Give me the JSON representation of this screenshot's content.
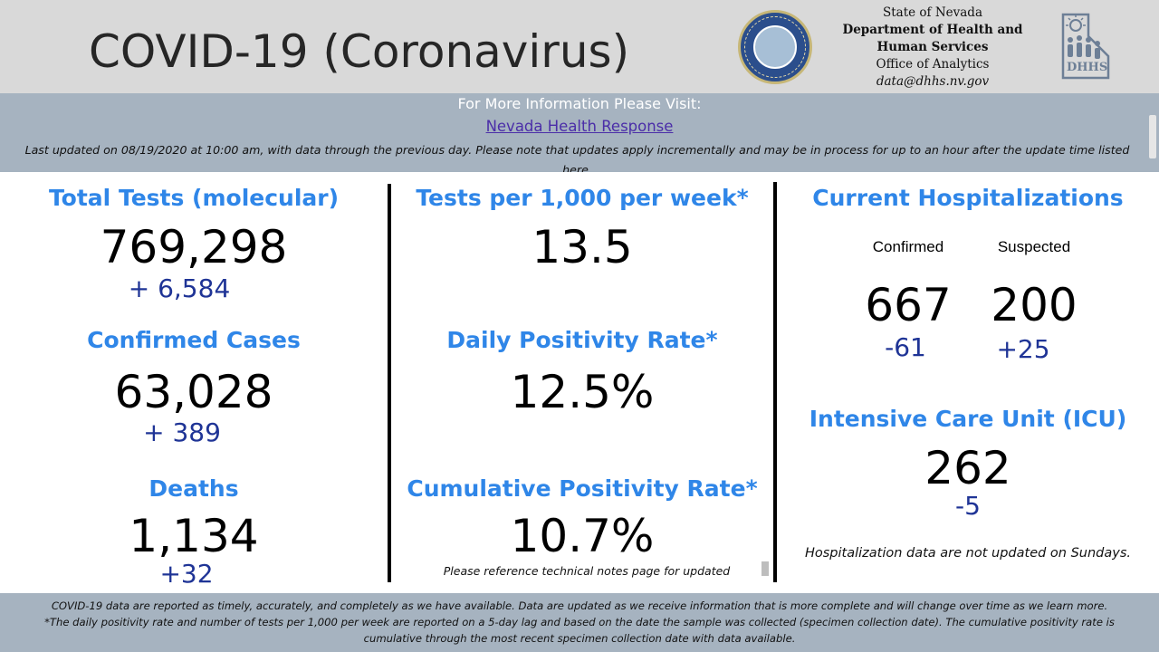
{
  "header": {
    "title": "COVID-19 (Coronavirus)",
    "dept_line1": "State of Nevada",
    "dept_line2": "Department of Health and",
    "dept_line3": "Human Services",
    "dept_line4": "Office of Analytics",
    "dept_email": "data@dhhs.nv.gov"
  },
  "info": {
    "heading": "For More Information Please Visit:",
    "link_text": "Nevada Health Response",
    "updated_text": "Last updated on 08/19/2020 at 10:00 am, with data through the previous day.  Please note that updates apply incrementally and may be in process for up to an hour after the update time listed here."
  },
  "col1": {
    "tests_label": "Total Tests (molecular)",
    "tests_value": "769,298",
    "tests_delta": "+  6,584",
    "cases_label": "Confirmed Cases",
    "cases_value": "63,028",
    "cases_delta": "+ 389",
    "deaths_label": "Deaths",
    "deaths_value": "1,134",
    "deaths_delta": "+32"
  },
  "col2": {
    "tpk_label": "Tests per 1,000 per week*",
    "tpk_value": "13.5",
    "daily_label": "Daily Positivity Rate*",
    "daily_value": "12.5%",
    "cum_label": "Cumulative Positivity Rate*",
    "cum_value": "10.7%",
    "note": "Please reference technical notes page for updated"
  },
  "col3": {
    "hosp_label": "Current Hospitalizations",
    "confirmed_label": "Confirmed",
    "suspected_label": "Suspected",
    "confirmed_value": "667",
    "confirmed_delta": "-61",
    "suspected_value": "200",
    "suspected_delta": "+25",
    "icu_label": "Intensive Care Unit (ICU)",
    "icu_value": "262",
    "icu_delta": "-5",
    "note": "Hospitalization data are not updated on Sundays."
  },
  "footer": {
    "line1": "COVID-19 data are reported as timely, accurately, and completely as we have available.  Data are updated as we receive information that is more complete and will change over time as we learn more.",
    "line2": "*The daily positivity rate and number of tests per 1,000 per week are reported on a 5-day lag and based on the date the sample was collected (specimen collection date).  The cumulative positivity rate is",
    "line3": "cumulative through the most recent specimen collection date with data available."
  },
  "colors": {
    "label_blue": "#2f86e8",
    "delta_blue": "#1f3496",
    "band_gray_blue": "#a6b3c0",
    "header_gray": "#d9d9d9"
  },
  "icons": {
    "seal": "nevada-state-seal-icon",
    "logo": "dhhs-logo-icon"
  }
}
